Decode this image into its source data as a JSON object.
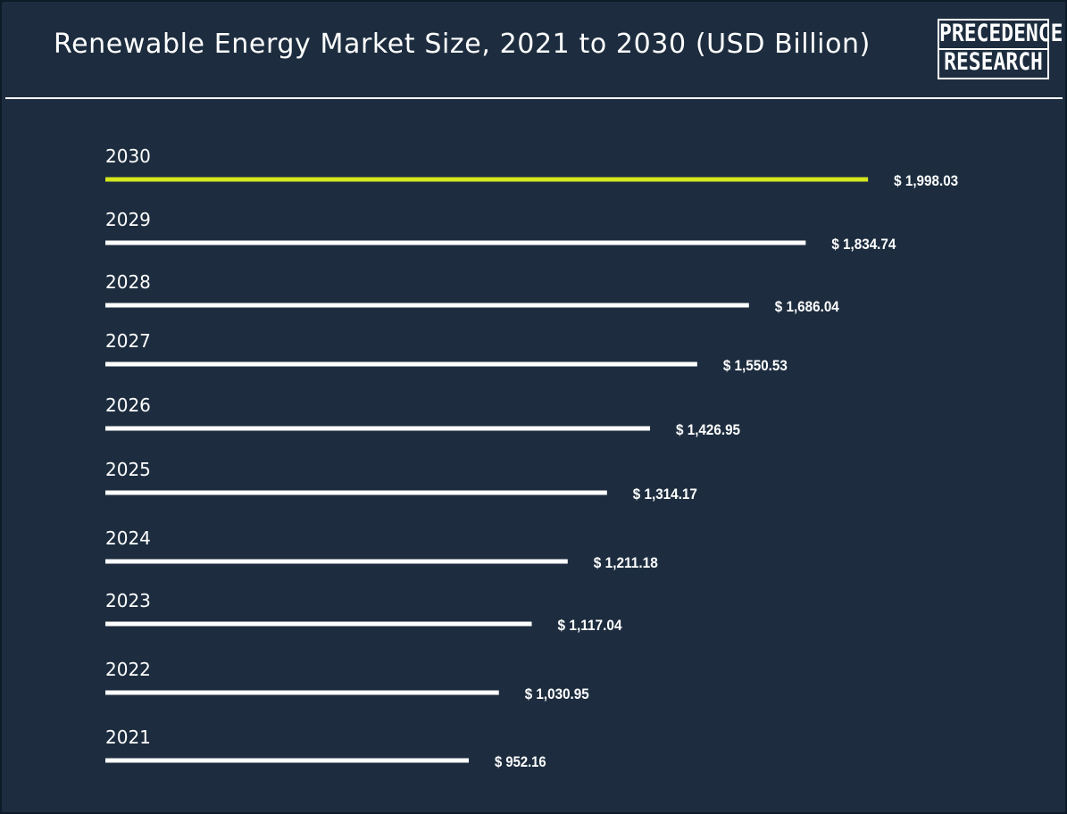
{
  "title": "Renewable Energy Market Size, 2021 to 2030 (USD Billion)",
  "logo": {
    "line1": "PRECEDENCE",
    "line2": "RESEARCH"
  },
  "colors": {
    "background": "#1d2d3f",
    "bar": "#ffffff",
    "highlight": "#d4e61d",
    "text": "#ffffff"
  },
  "chart_data": {
    "type": "bar",
    "orientation": "horizontal",
    "title": "Renewable Energy Market Size, 2021 to 2030 (USD Billion)",
    "categories": [
      "2030",
      "2029",
      "2028",
      "2027",
      "2026",
      "2025",
      "2024",
      "2023",
      "2022",
      "2021"
    ],
    "values": [
      1998.03,
      1834.74,
      1686.04,
      1550.53,
      1426.95,
      1314.17,
      1211.18,
      1117.04,
      1030.95,
      952.16
    ],
    "value_labels": [
      "$ 1,998.03",
      "$ 1,834.74",
      "$ 1,686.04",
      "$ 1,550.53",
      "$ 1,426.95",
      "$ 1,314.17",
      "$ 1,211.18",
      "$ 1,117.04",
      "$ 1,030.95",
      "$ 952.16"
    ],
    "highlight_category": "2030",
    "xlim": [
      0,
      2000
    ],
    "grid": false,
    "legend": "none"
  }
}
